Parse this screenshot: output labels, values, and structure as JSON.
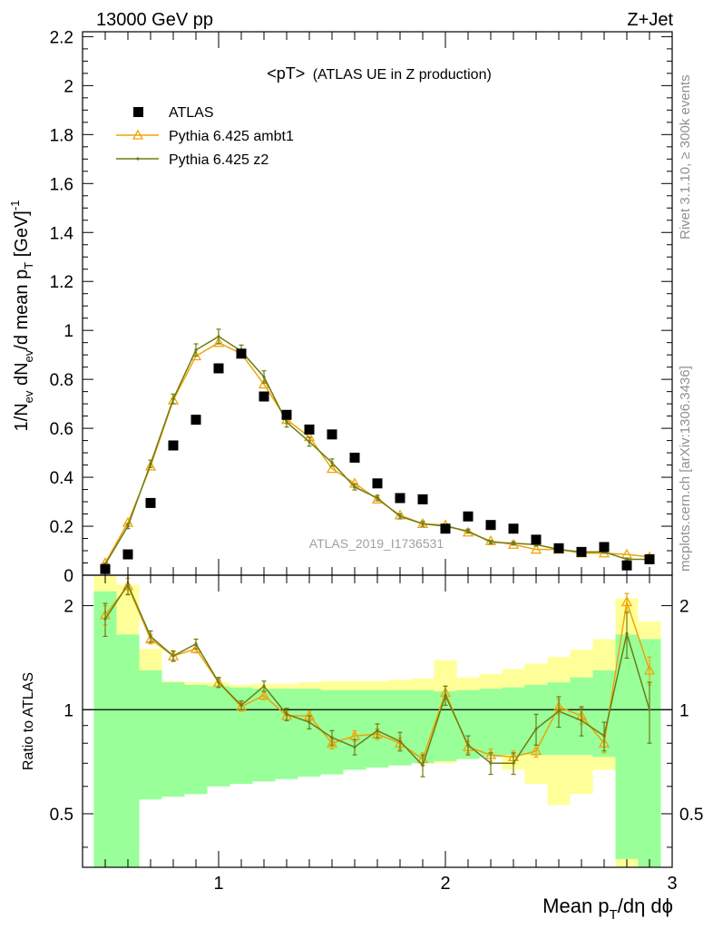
{
  "header": {
    "left": "13000 GeV pp",
    "right": "Z+Jet"
  },
  "plot_title": {
    "main": "<pT>",
    "sub": "(ATLAS UE in Z production)"
  },
  "side_labels": {
    "rivet": "Rivet 3.1.10, ≥ 300k events",
    "mcplots": "mcplots.cern.ch [arXiv:1306.3436]"
  },
  "watermark": "ATLAS_2019_I1736531",
  "axis_labels": {
    "y_main": "1/N_ev dN_ev/d mean p_T [GeV]^-1",
    "y_ratio": "Ratio to ATLAS",
    "x": "Mean p_T/dη dϕ"
  },
  "colors": {
    "data": "#000000",
    "ambt1": "#f0a30a",
    "z2": "#6e7d12",
    "band_inner": "#99ff99",
    "band_outer": "#ffff99"
  },
  "chart_data": {
    "type": "scatter",
    "x_edges": [
      0.45,
      0.55,
      0.65,
      0.75,
      0.85,
      0.95,
      1.05,
      1.15,
      1.25,
      1.35,
      1.45,
      1.55,
      1.65,
      1.75,
      1.85,
      1.95,
      2.05,
      2.15,
      2.25,
      2.35,
      2.45,
      2.55,
      2.65,
      2.75,
      2.85,
      2.95
    ],
    "x": [
      0.5,
      0.6,
      0.7,
      0.8,
      0.9,
      1.0,
      1.1,
      1.2,
      1.3,
      1.4,
      1.5,
      1.6,
      1.7,
      1.8,
      1.9,
      2.0,
      2.1,
      2.2,
      2.3,
      2.4,
      2.5,
      2.6,
      2.7,
      2.8,
      2.9
    ],
    "xlim": [
      0.4,
      3.0
    ],
    "x_ticks": [
      "1",
      "2",
      "3"
    ],
    "main": {
      "ylim": [
        0,
        2.22
      ],
      "y_ticks": [
        "0",
        "0.2",
        "0.4",
        "0.6",
        "0.8",
        "1",
        "1.2",
        "1.4",
        "1.6",
        "1.8",
        "2",
        "2.2"
      ],
      "series": [
        {
          "name": "ATLAS",
          "marker": "square",
          "values": [
            0.025,
            0.085,
            0.295,
            0.53,
            0.635,
            0.845,
            0.905,
            0.73,
            0.655,
            0.595,
            0.575,
            0.48,
            0.375,
            0.315,
            0.31,
            0.19,
            0.24,
            0.205,
            0.19,
            0.145,
            0.11,
            0.095,
            0.115,
            0.04,
            0.065
          ]
        },
        {
          "name": "Pythia 6.425 ambt1",
          "marker": "triangle",
          "values": [
            0.05,
            0.215,
            0.445,
            0.715,
            0.895,
            0.95,
            0.905,
            0.78,
            0.635,
            0.565,
            0.435,
            0.375,
            0.31,
            0.245,
            0.21,
            0.205,
            0.175,
            0.14,
            0.125,
            0.105,
            0.105,
            0.09,
            0.09,
            0.085,
            0.075
          ]
        },
        {
          "name": "Pythia 6.425 z2",
          "marker": "dot",
          "values": [
            0.045,
            0.2,
            0.455,
            0.72,
            0.92,
            0.975,
            0.915,
            0.81,
            0.625,
            0.545,
            0.46,
            0.36,
            0.315,
            0.24,
            0.21,
            0.2,
            0.18,
            0.135,
            0.13,
            0.125,
            0.105,
            0.095,
            0.095,
            0.065,
            0.065
          ],
          "errors": [
            0.004,
            0.01,
            0.015,
            0.02,
            0.025,
            0.03,
            0.025,
            0.025,
            0.02,
            0.018,
            0.015,
            0.012,
            0.011,
            0.01,
            0.01,
            0.009,
            0.008,
            0.007,
            0.007,
            0.006,
            0.006,
            0.005,
            0.005,
            0.005,
            0.005
          ]
        }
      ]
    },
    "ratio": {
      "scale": "log",
      "ylim": [
        0.35,
        2.45
      ],
      "y_ticks": [
        "0.5",
        "1",
        "2"
      ],
      "reference_line": 1.0,
      "band_inner": {
        "low": [
          0.35,
          0.35,
          0.55,
          0.56,
          0.57,
          0.6,
          0.61,
          0.62,
          0.63,
          0.64,
          0.65,
          0.67,
          0.68,
          0.69,
          0.7,
          0.71,
          0.72,
          0.73,
          0.74,
          0.74,
          0.74,
          0.74,
          0.73,
          0.37,
          0.35
        ],
        "high": [
          2.2,
          1.65,
          1.3,
          1.2,
          1.18,
          1.17,
          1.16,
          1.15,
          1.15,
          1.15,
          1.14,
          1.14,
          1.14,
          1.14,
          1.14,
          1.13,
          1.14,
          1.15,
          1.16,
          1.18,
          1.2,
          1.24,
          1.3,
          1.65,
          1.6
        ]
      },
      "band_outer": {
        "low": [
          0.35,
          0.35,
          0.62,
          0.81,
          0.82,
          0.82,
          0.82,
          0.85,
          0.85,
          0.84,
          0.84,
          0.81,
          0.82,
          0.81,
          0.76,
          0.7,
          0.78,
          0.74,
          0.67,
          0.61,
          0.53,
          0.57,
          0.67,
          0.35,
          0.66
        ],
        "high": [
          2.45,
          2.3,
          1.5,
          1.21,
          1.2,
          1.2,
          1.18,
          1.19,
          1.19,
          1.2,
          1.21,
          1.21,
          1.21,
          1.22,
          1.23,
          1.39,
          1.24,
          1.27,
          1.31,
          1.36,
          1.42,
          1.49,
          1.6,
          2.1,
          1.8
        ]
      },
      "series": [
        {
          "name": "Pythia 6.425 ambt1",
          "values": [
            1.88,
            2.28,
            1.6,
            1.43,
            1.5,
            1.2,
            1.02,
            1.1,
            0.96,
            0.96,
            0.8,
            0.84,
            0.85,
            0.8,
            0.72,
            1.12,
            0.78,
            0.74,
            0.73,
            0.76,
            1.02,
            0.96,
            0.8,
            2.05,
            1.3
          ],
          "errors": [
            0.12,
            0.12,
            0.05,
            0.04,
            0.04,
            0.03,
            0.03,
            0.03,
            0.03,
            0.03,
            0.03,
            0.03,
            0.03,
            0.03,
            0.03,
            0.05,
            0.03,
            0.03,
            0.03,
            0.03,
            0.05,
            0.05,
            0.05,
            0.12,
            0.12
          ]
        },
        {
          "name": "Pythia 6.425 z2",
          "values": [
            1.83,
            2.3,
            1.63,
            1.43,
            1.55,
            1.2,
            1.03,
            1.17,
            0.97,
            0.92,
            0.83,
            0.78,
            0.87,
            0.81,
            0.69,
            1.1,
            0.79,
            0.7,
            0.7,
            0.88,
            0.99,
            0.93,
            0.84,
            1.66,
            1.0
          ],
          "errors": [
            0.2,
            0.15,
            0.06,
            0.05,
            0.05,
            0.04,
            0.03,
            0.04,
            0.04,
            0.04,
            0.04,
            0.04,
            0.04,
            0.05,
            0.05,
            0.07,
            0.05,
            0.05,
            0.05,
            0.09,
            0.1,
            0.09,
            0.08,
            0.25,
            0.2
          ]
        }
      ]
    },
    "legend": {
      "placement": "top-left",
      "entries": [
        "ATLAS",
        "Pythia 6.425 ambt1",
        "Pythia 6.425 z2"
      ]
    }
  }
}
